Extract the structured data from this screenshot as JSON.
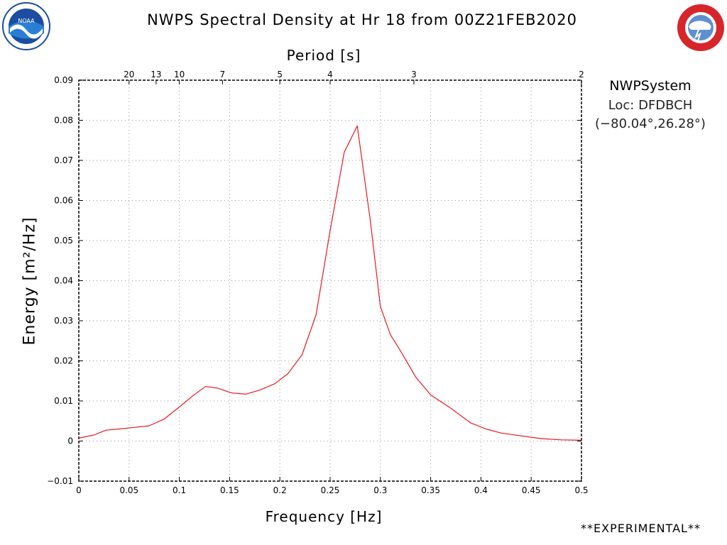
{
  "header": {
    "title": "NWPS Spectral Density at Hr 18 from 00Z21FEB2020"
  },
  "info_box": {
    "system": "NWPSystem",
    "location": "Loc: DFDBCH",
    "coordinates": "(−80.04°,26.28°)"
  },
  "footer": {
    "note": "**EXPERIMENTAL**"
  },
  "logos": {
    "left": "noaa-logo",
    "right": "national-weather-service-logo"
  },
  "colors": {
    "series": "#e8191f",
    "grid": "#9a9a9a",
    "noaa_blue": "#1c4da1",
    "nws_red": "#d7262b"
  },
  "chart_data": {
    "type": "line",
    "title": "NWPS Spectral Density at Hr 18 from 00Z21FEB2020",
    "xlabel": "Frequency [Hz]",
    "ylabel": "Energy [m²/Hz]",
    "top_axis_label": "Period [s]",
    "xlim": [
      0,
      0.5
    ],
    "ylim": [
      -0.01,
      0.09
    ],
    "x_ticks": [
      "0",
      "0.05",
      "0.1",
      "0.15",
      "0.2",
      "0.25",
      "0.3",
      "0.35",
      "0.4",
      "0.45",
      "0.5"
    ],
    "x_tick_values": [
      0,
      0.05,
      0.1,
      0.15,
      0.2,
      0.25,
      0.3,
      0.35,
      0.4,
      0.45,
      0.5
    ],
    "y_ticks": [
      "−0.01",
      "0",
      "0.01",
      "0.02",
      "0.03",
      "0.04",
      "0.05",
      "0.06",
      "0.07",
      "0.08",
      "0.09"
    ],
    "y_tick_values": [
      -0.01,
      0,
      0.01,
      0.02,
      0.03,
      0.04,
      0.05,
      0.06,
      0.07,
      0.08,
      0.09
    ],
    "period_ticks": [
      {
        "label": "20",
        "freq": 0.05
      },
      {
        "label": "13",
        "freq": 0.0769
      },
      {
        "label": "10",
        "freq": 0.1
      },
      {
        "label": "7",
        "freq": 0.1429
      },
      {
        "label": "5",
        "freq": 0.2
      },
      {
        "label": "4",
        "freq": 0.25
      },
      {
        "label": "3",
        "freq": 0.3333
      },
      {
        "label": "2",
        "freq": 0.5
      }
    ],
    "grid": true,
    "series": [
      {
        "x": [
          0,
          0.015,
          0.027,
          0.04,
          0.055,
          0.07,
          0.085,
          0.1,
          0.113,
          0.126,
          0.138,
          0.152,
          0.166,
          0.18,
          0.195,
          0.208,
          0.222,
          0.236,
          0.25,
          0.264,
          0.277,
          0.29,
          0.3,
          0.31,
          0.32,
          0.335,
          0.35,
          0.37,
          0.39,
          0.405,
          0.42,
          0.44,
          0.46,
          0.48,
          0.5
        ],
        "y": [
          0.0007,
          0.0015,
          0.0027,
          0.003,
          0.0034,
          0.0038,
          0.0055,
          0.0085,
          0.0112,
          0.0136,
          0.0132,
          0.012,
          0.0117,
          0.0127,
          0.0143,
          0.0168,
          0.0215,
          0.0315,
          0.0525,
          0.072,
          0.0786,
          0.055,
          0.0335,
          0.0265,
          0.0225,
          0.016,
          0.0115,
          0.0082,
          0.0045,
          0.003,
          0.002,
          0.0013,
          0.0006,
          0.0003,
          0.0002
        ]
      }
    ]
  }
}
